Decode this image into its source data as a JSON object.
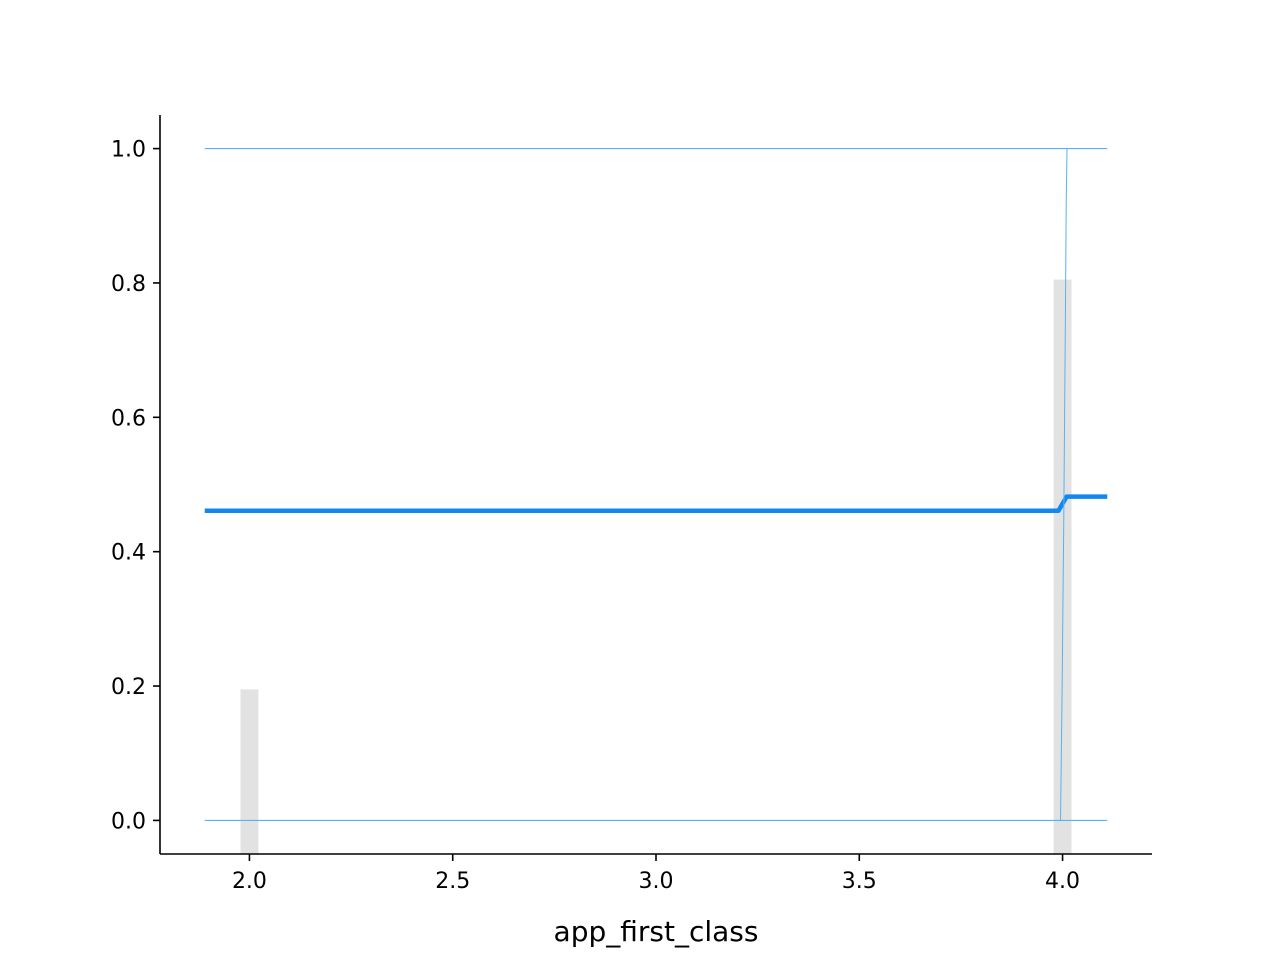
{
  "chart_data": {
    "type": "line",
    "title": "",
    "xlabel": "app_first_class",
    "ylabel": "",
    "xlim": [
      1.78,
      4.22
    ],
    "ylim": [
      -0.05,
      1.05
    ],
    "xticks": [
      2.0,
      2.5,
      3.0,
      3.5,
      4.0
    ],
    "yticks": [
      0.0,
      0.2,
      0.4,
      0.6,
      0.8,
      1.0
    ],
    "xtick_labels": [
      "2.0",
      "2.5",
      "3.0",
      "3.5",
      "4.0"
    ],
    "ytick_labels": [
      "0.0",
      "0.2",
      "0.4",
      "0.6",
      "0.8",
      "1.0"
    ],
    "grid": false,
    "histogram": {
      "color": "#e2e2e2",
      "bins": [
        {
          "x0": 1.978,
          "x1": 2.022,
          "value": 0.195
        },
        {
          "x0": 3.978,
          "x1": 4.022,
          "value": 0.805
        }
      ]
    },
    "series": [
      {
        "role": "mean-curve",
        "color": "#1188ee",
        "x": [
          1.89,
          3.99,
          4.01,
          4.11
        ],
        "y": [
          0.461,
          0.461,
          0.482,
          0.482
        ]
      },
      {
        "role": "cumulative-sample",
        "color": "#57b3f0",
        "x": [
          3.995,
          3.999,
          4.003,
          4.007,
          4.009,
          4.011
        ],
        "y": [
          0.0,
          0.2,
          0.45,
          0.75,
          0.92,
          1.0
        ]
      },
      {
        "role": "reference-line",
        "color": "#57b3f0",
        "x": [
          1.89,
          4.11
        ],
        "y": [
          0.0,
          0.0
        ]
      },
      {
        "role": "reference-line",
        "color": "#57b3f0",
        "x": [
          1.89,
          4.11
        ],
        "y": [
          1.0,
          1.0
        ]
      }
    ]
  }
}
